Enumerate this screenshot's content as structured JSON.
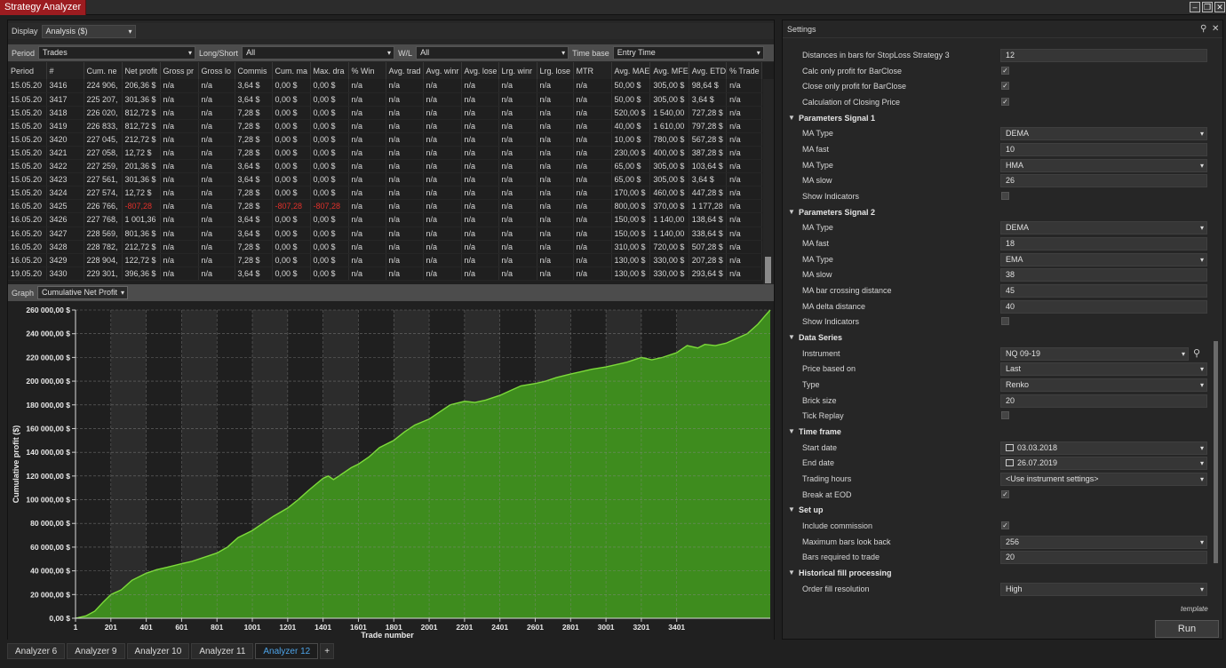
{
  "app": {
    "title": "Strategy Analyzer"
  },
  "display": {
    "label": "Display",
    "value": "Analysis ($)"
  },
  "filters": {
    "period_label": "Period",
    "period_value": "Trades",
    "longshort_label": "Long/Short",
    "longshort_value": "All",
    "wl_label": "W/L",
    "wl_value": "All",
    "timebase_label": "Time base",
    "timebase_value": "Entry Time"
  },
  "table": {
    "columns": [
      "Period",
      "#",
      "Cum. ne",
      "Net profit",
      "Gross pr",
      "Gross lo",
      "Commis",
      "Cum. ma",
      "Max. dra",
      "% Win",
      "Avg. trad",
      "Avg. winr",
      "Avg. lose",
      "Lrg. winr",
      "Lrg. lose",
      "MTR",
      "Avg. MAE",
      "Avg. MFE",
      "Avg. ETD",
      "% Trade"
    ],
    "rows": [
      [
        "15.05.20",
        "3416",
        "224 906,",
        "206,36 $",
        "n/a",
        "n/a",
        "3,64 $",
        "0,00 $",
        "0,00 $",
        "n/a",
        "n/a",
        "n/a",
        "n/a",
        "n/a",
        "n/a",
        "n/a",
        "50,00 $",
        "305,00 $",
        "98,64 $",
        "n/a"
      ],
      [
        "15.05.20",
        "3417",
        "225 207,",
        "301,36 $",
        "n/a",
        "n/a",
        "3,64 $",
        "0,00 $",
        "0,00 $",
        "n/a",
        "n/a",
        "n/a",
        "n/a",
        "n/a",
        "n/a",
        "n/a",
        "50,00 $",
        "305,00 $",
        "3,64 $",
        "n/a"
      ],
      [
        "15.05.20",
        "3418",
        "226 020,",
        "812,72 $",
        "n/a",
        "n/a",
        "7,28 $",
        "0,00 $",
        "0,00 $",
        "n/a",
        "n/a",
        "n/a",
        "n/a",
        "n/a",
        "n/a",
        "n/a",
        "520,00 $",
        "1 540,00",
        "727,28 $",
        "n/a"
      ],
      [
        "15.05.20",
        "3419",
        "226 833,",
        "812,72 $",
        "n/a",
        "n/a",
        "7,28 $",
        "0,00 $",
        "0,00 $",
        "n/a",
        "n/a",
        "n/a",
        "n/a",
        "n/a",
        "n/a",
        "n/a",
        "40,00 $",
        "1 610,00",
        "797,28 $",
        "n/a"
      ],
      [
        "15.05.20",
        "3420",
        "227 045,",
        "212,72 $",
        "n/a",
        "n/a",
        "7,28 $",
        "0,00 $",
        "0,00 $",
        "n/a",
        "n/a",
        "n/a",
        "n/a",
        "n/a",
        "n/a",
        "n/a",
        "10,00 $",
        "780,00 $",
        "567,28 $",
        "n/a"
      ],
      [
        "15.05.20",
        "3421",
        "227 058,",
        "12,72 $",
        "n/a",
        "n/a",
        "7,28 $",
        "0,00 $",
        "0,00 $",
        "n/a",
        "n/a",
        "n/a",
        "n/a",
        "n/a",
        "n/a",
        "n/a",
        "230,00 $",
        "400,00 $",
        "387,28 $",
        "n/a"
      ],
      [
        "15.05.20",
        "3422",
        "227 259,",
        "201,36 $",
        "n/a",
        "n/a",
        "3,64 $",
        "0,00 $",
        "0,00 $",
        "n/a",
        "n/a",
        "n/a",
        "n/a",
        "n/a",
        "n/a",
        "n/a",
        "65,00 $",
        "305,00 $",
        "103,64 $",
        "n/a"
      ],
      [
        "15.05.20",
        "3423",
        "227 561,",
        "301,36 $",
        "n/a",
        "n/a",
        "3,64 $",
        "0,00 $",
        "0,00 $",
        "n/a",
        "n/a",
        "n/a",
        "n/a",
        "n/a",
        "n/a",
        "n/a",
        "65,00 $",
        "305,00 $",
        "3,64 $",
        "n/a"
      ],
      [
        "15.05.20",
        "3424",
        "227 574,",
        "12,72 $",
        "n/a",
        "n/a",
        "7,28 $",
        "0,00 $",
        "0,00 $",
        "n/a",
        "n/a",
        "n/a",
        "n/a",
        "n/a",
        "n/a",
        "n/a",
        "170,00 $",
        "460,00 $",
        "447,28 $",
        "n/a"
      ],
      [
        "16.05.20",
        "3425",
        "226 766,",
        "-807,28",
        "n/a",
        "n/a",
        "7,28 $",
        "-807,28",
        "-807,28",
        "n/a",
        "n/a",
        "n/a",
        "n/a",
        "n/a",
        "n/a",
        "n/a",
        "800,00 $",
        "370,00 $",
        "1 177,28",
        "n/a"
      ],
      [
        "16.05.20",
        "3426",
        "227 768,",
        "1 001,36",
        "n/a",
        "n/a",
        "3,64 $",
        "0,00 $",
        "0,00 $",
        "n/a",
        "n/a",
        "n/a",
        "n/a",
        "n/a",
        "n/a",
        "n/a",
        "150,00 $",
        "1 140,00",
        "138,64 $",
        "n/a"
      ],
      [
        "16.05.20",
        "3427",
        "228 569,",
        "801,36 $",
        "n/a",
        "n/a",
        "3,64 $",
        "0,00 $",
        "0,00 $",
        "n/a",
        "n/a",
        "n/a",
        "n/a",
        "n/a",
        "n/a",
        "n/a",
        "150,00 $",
        "1 140,00",
        "338,64 $",
        "n/a"
      ],
      [
        "16.05.20",
        "3428",
        "228 782,",
        "212,72 $",
        "n/a",
        "n/a",
        "7,28 $",
        "0,00 $",
        "0,00 $",
        "n/a",
        "n/a",
        "n/a",
        "n/a",
        "n/a",
        "n/a",
        "n/a",
        "310,00 $",
        "720,00 $",
        "507,28 $",
        "n/a"
      ],
      [
        "16.05.20",
        "3429",
        "228 904,",
        "122,72 $",
        "n/a",
        "n/a",
        "7,28 $",
        "0,00 $",
        "0,00 $",
        "n/a",
        "n/a",
        "n/a",
        "n/a",
        "n/a",
        "n/a",
        "n/a",
        "130,00 $",
        "330,00 $",
        "207,28 $",
        "n/a"
      ],
      [
        "19.05.20",
        "3430",
        "229 301,",
        "396,36 $",
        "n/a",
        "n/a",
        "3,64 $",
        "0,00 $",
        "0,00 $",
        "n/a",
        "n/a",
        "n/a",
        "n/a",
        "n/a",
        "n/a",
        "n/a",
        "130,00 $",
        "330,00 $",
        "293,64 $",
        "n/a"
      ]
    ]
  },
  "graph": {
    "label": "Graph",
    "value": "Cumulative Net Profit"
  },
  "chart_data": {
    "type": "area",
    "xlabel": "Trade number",
    "ylabel": "Cumulative profit ($)",
    "xlim": [
      1,
      3930
    ],
    "ylim": [
      0,
      260000
    ],
    "x_ticks": [
      "1",
      "201",
      "401",
      "601",
      "801",
      "1001",
      "1201",
      "1401",
      "1601",
      "1801",
      "2001",
      "2201",
      "2401",
      "2601",
      "2801",
      "3001",
      "3201",
      "3401"
    ],
    "y_ticks": [
      "0,00 $",
      "20 000,00 $",
      "40 000,00 $",
      "60 000,00 $",
      "80 000,00 $",
      "100 000,00 $",
      "120 000,00 $",
      "140 000,00 $",
      "160 000,00 $",
      "180 000,00 $",
      "200 000,00 $",
      "220 000,00 $",
      "240 000,00 $",
      "260 000,00 $"
    ],
    "grid": true,
    "color": "#3e8c1e",
    "line_color": "#7ddb3a",
    "series": [
      {
        "x": [
          1,
          60,
          110,
          160,
          201,
          260,
          320,
          401,
          460,
          520,
          601,
          660,
          720,
          801,
          860,
          920,
          1001,
          1060,
          1120,
          1201,
          1260,
          1320,
          1401,
          1430,
          1460,
          1501,
          1560,
          1601,
          1660,
          1720,
          1801,
          1860,
          1920,
          2001,
          2060,
          2120,
          2201,
          2260,
          2320,
          2401,
          2460,
          2520,
          2601,
          2660,
          2720,
          2801,
          2860,
          2920,
          3001,
          3060,
          3120,
          3201,
          3260,
          3320,
          3401,
          3460,
          3520,
          3560,
          3620,
          3680,
          3740,
          3800,
          3860,
          3900,
          3930
        ],
        "y": [
          0,
          2000,
          6000,
          14000,
          20000,
          24000,
          32000,
          38000,
          41000,
          43000,
          46000,
          48000,
          51000,
          55000,
          60000,
          68000,
          74000,
          80000,
          86000,
          93000,
          100000,
          108000,
          118000,
          120000,
          117000,
          121000,
          127000,
          130000,
          136000,
          144000,
          150000,
          157000,
          163000,
          168000,
          174000,
          180000,
          183000,
          182000,
          184000,
          188000,
          192000,
          196000,
          198000,
          200000,
          203000,
          206000,
          208000,
          210000,
          212000,
          214000,
          216000,
          220000,
          218000,
          220000,
          224000,
          230000,
          228000,
          231000,
          230000,
          232000,
          236000,
          240000,
          248000,
          255000,
          260000
        ]
      }
    ]
  },
  "settings": {
    "title": "Settings",
    "rows": [
      {
        "kind": "text",
        "label": "Distances in bars for StopLoss Strategy 3",
        "value": "12"
      },
      {
        "kind": "check",
        "label": "Calc only profit for BarClose",
        "checked": "✓"
      },
      {
        "kind": "check",
        "label": "Close only profit for BarClose",
        "checked": "✓"
      },
      {
        "kind": "check",
        "label": "Calculation of Closing Price",
        "checked": "✓"
      },
      {
        "kind": "section",
        "label": "Parameters Signal 1"
      },
      {
        "kind": "select",
        "label": "MA Type",
        "value": "DEMA"
      },
      {
        "kind": "text",
        "label": "MA fast",
        "value": "10"
      },
      {
        "kind": "select",
        "label": "MA Type",
        "value": "HMA"
      },
      {
        "kind": "text",
        "label": "MA slow",
        "value": "26"
      },
      {
        "kind": "check",
        "label": "Show Indicators",
        "checked": ""
      },
      {
        "kind": "section",
        "label": "Parameters Signal 2"
      },
      {
        "kind": "select",
        "label": "MA Type",
        "value": "DEMA"
      },
      {
        "kind": "text",
        "label": "MA fast",
        "value": "18"
      },
      {
        "kind": "select",
        "label": "MA Type",
        "value": "EMA"
      },
      {
        "kind": "text",
        "label": "MA slow",
        "value": "38"
      },
      {
        "kind": "text",
        "label": "MA bar crossing distance",
        "value": "45"
      },
      {
        "kind": "text",
        "label": "MA delta distance",
        "value": "40"
      },
      {
        "kind": "check",
        "label": "Show Indicators",
        "checked": ""
      },
      {
        "kind": "section",
        "label": "Data Series"
      },
      {
        "kind": "instrument",
        "label": "Instrument",
        "value": "NQ 09-19"
      },
      {
        "kind": "select",
        "label": "Price based on",
        "value": "Last"
      },
      {
        "kind": "select",
        "label": "Type",
        "value": "Renko"
      },
      {
        "kind": "text",
        "label": "Brick size",
        "value": "20"
      },
      {
        "kind": "check",
        "label": "Tick Replay",
        "checked": ""
      },
      {
        "kind": "section",
        "label": "Time frame"
      },
      {
        "kind": "date",
        "label": "Start date",
        "value": "03.03.2018"
      },
      {
        "kind": "date",
        "label": "End date",
        "value": "26.07.2019"
      },
      {
        "kind": "select",
        "label": "Trading hours",
        "value": "<Use instrument settings>"
      },
      {
        "kind": "check",
        "label": "Break at EOD",
        "checked": "✓"
      },
      {
        "kind": "section",
        "label": "Set up"
      },
      {
        "kind": "check",
        "label": "Include commission",
        "checked": "✓"
      },
      {
        "kind": "select",
        "label": "Maximum bars look back",
        "value": "256"
      },
      {
        "kind": "text",
        "label": "Bars required to trade",
        "value": "20"
      },
      {
        "kind": "section",
        "label": "Historical fill processing"
      },
      {
        "kind": "select",
        "label": "Order fill resolution",
        "value": "High"
      }
    ],
    "template_label": "template",
    "run_label": "Run"
  },
  "tabs": [
    "Analyzer 6",
    "Analyzer 9",
    "Analyzer 10",
    "Analyzer 11",
    "Analyzer 12"
  ],
  "active_tab": "Analyzer 12",
  "add_tab_label": "+"
}
